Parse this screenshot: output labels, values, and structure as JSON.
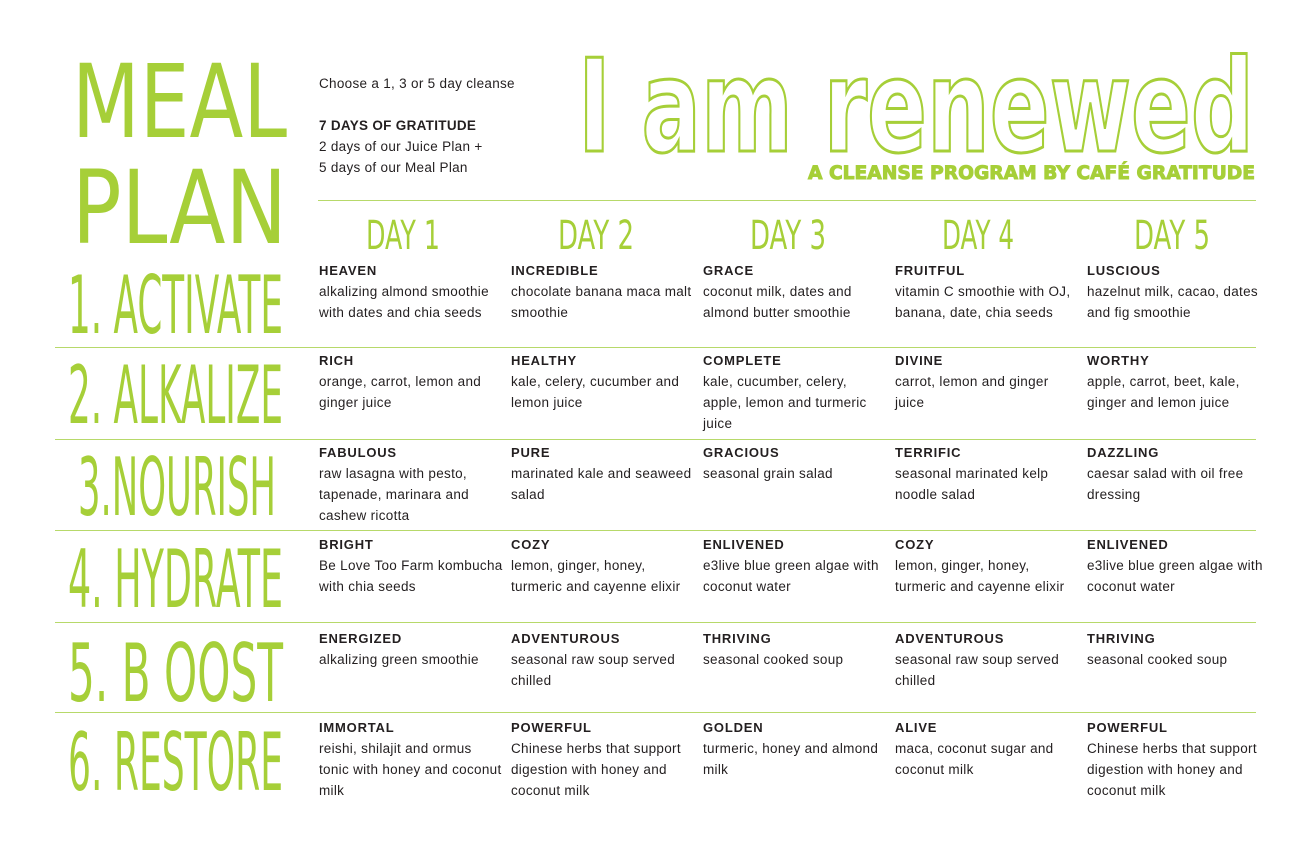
{
  "header": {
    "left_title_line1": "MEAL",
    "left_title_line2": "PLAN",
    "intro": "Choose a 1, 3 or 5 day cleanse",
    "gratitude_heading": "7 DAYS OF GRATITUDE",
    "gratitude_line1": "2 days of our Juice Plan +",
    "gratitude_line2": "5 days of our Meal Plan",
    "title": "I am renewed",
    "subtitle": "A CLEANSE PROGRAM BY CAFÉ GRATITUDE"
  },
  "colors": {
    "accent": "#a6cf38",
    "text": "#231f20"
  },
  "days": [
    "DAY 1",
    "DAY 2",
    "DAY 3",
    "DAY 4",
    "DAY 5"
  ],
  "rows": [
    {
      "label": "1. ACTIVATE",
      "items": [
        {
          "name": "HEAVEN",
          "desc": "alkalizing almond smoothie with dates and chia seeds"
        },
        {
          "name": "INCREDIBLE",
          "desc": "chocolate banana maca malt smoothie"
        },
        {
          "name": "GRACE",
          "desc": "coconut milk, dates and almond butter smoothie"
        },
        {
          "name": "FRUITFUL",
          "desc": "vitamin C smoothie with OJ, banana, date, chia seeds"
        },
        {
          "name": "LUSCIOUS",
          "desc": "hazelnut milk, cacao, dates and fig smoothie"
        }
      ]
    },
    {
      "label": "2. ALKALIZE",
      "items": [
        {
          "name": "RICH",
          "desc": "orange, carrot, lemon and ginger juice"
        },
        {
          "name": "HEALTHY",
          "desc": "kale, celery, cucumber and lemon juice"
        },
        {
          "name": "COMPLETE",
          "desc": "kale, cucumber, celery, apple, lemon and turmeric juice"
        },
        {
          "name": "DIVINE",
          "desc": "carrot, lemon and ginger juice"
        },
        {
          "name": "WORTHY",
          "desc": "apple, carrot, beet, kale, ginger and lemon juice"
        }
      ]
    },
    {
      "label": "3.NOURISH",
      "items": [
        {
          "name": "FABULOUS",
          "desc": "raw lasagna with pesto, tapenade, marinara and cashew ricotta"
        },
        {
          "name": "PURE",
          "desc": "marinated kale and seaweed salad"
        },
        {
          "name": "GRACIOUS",
          "desc": "seasonal grain salad"
        },
        {
          "name": "TERRIFIC",
          "desc": "seasonal marinated kelp noodle salad"
        },
        {
          "name": "DAZZLING",
          "desc": "caesar salad with oil free dressing"
        }
      ]
    },
    {
      "label": "4. HYDRATE",
      "items": [
        {
          "name": "BRIGHT",
          "desc": "Be Love Too Farm kombucha with chia seeds"
        },
        {
          "name": "COZY",
          "desc": "lemon, ginger, honey, turmeric and cayenne elixir"
        },
        {
          "name": "ENLIVENED",
          "desc": "e3live blue green algae with coconut water"
        },
        {
          "name": "COZY",
          "desc": "lemon, ginger, honey, turmeric and cayenne elixir"
        },
        {
          "name": "ENLIVENED",
          "desc": "e3live blue green algae with coconut water"
        }
      ]
    },
    {
      "label": "5. B OOST",
      "items": [
        {
          "name": "ENERGIZED",
          "desc": "alkalizing green smoothie"
        },
        {
          "name": "ADVENTUROUS",
          "desc": "seasonal raw soup served chilled"
        },
        {
          "name": "THRIVING",
          "desc": "seasonal cooked soup"
        },
        {
          "name": "ADVENTUROUS",
          "desc": "seasonal raw soup served chilled"
        },
        {
          "name": "THRIVING",
          "desc": "seasonal cooked soup"
        }
      ]
    },
    {
      "label": "6. RESTORE",
      "items": [
        {
          "name": "IMMORTAL",
          "desc": "reishi, shilajit and ormus tonic with honey and coconut milk"
        },
        {
          "name": "POWERFUL",
          "desc": "Chinese herbs that support digestion with honey and coconut milk"
        },
        {
          "name": "GOLDEN",
          "desc": "turmeric, honey and almond milk"
        },
        {
          "name": "ALIVE",
          "desc": "maca, coconut sugar and coconut milk"
        },
        {
          "name": "POWERFUL",
          "desc": "Chinese herbs that support digestion with honey and coconut milk"
        }
      ]
    }
  ]
}
